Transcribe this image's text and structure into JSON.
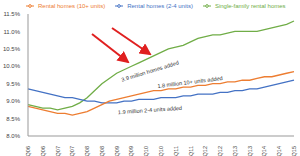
{
  "chart_data": {
    "type": "line",
    "categories": [
      "1Q06",
      null,
      "3Q06",
      null,
      "1Q07",
      null,
      "3Q07",
      null,
      "1Q08",
      null,
      "3Q08",
      null,
      "1Q09",
      null,
      "3Q09",
      null,
      "1Q10",
      null,
      "3Q10",
      null,
      "1Q11",
      null,
      "3Q11",
      null,
      "1Q12",
      null,
      "3Q12",
      null,
      "1Q13",
      null,
      "3Q13",
      null,
      "1Q14",
      null,
      "3Q14",
      null,
      "1Q15"
    ],
    "series": [
      {
        "name": "Single-family rental homes",
        "color": "#70ad47",
        "values": [
          8.9,
          8.85,
          8.8,
          8.8,
          8.75,
          8.8,
          8.85,
          8.95,
          9.1,
          9.3,
          9.5,
          9.65,
          9.8,
          9.9,
          10.0,
          10.1,
          10.2,
          10.3,
          10.4,
          10.5,
          10.55,
          10.6,
          10.7,
          10.8,
          10.85,
          10.9,
          10.9,
          10.95,
          11.0,
          11.0,
          11.0,
          11.0,
          11.05,
          11.1,
          11.15,
          11.2,
          11.3
        ]
      },
      {
        "name": "Rental homes (2-4 units)",
        "color": "#4472c4",
        "values": [
          9.35,
          9.3,
          9.25,
          9.2,
          9.15,
          9.1,
          9.1,
          9.05,
          9.0,
          9.0,
          8.95,
          8.95,
          8.95,
          9.0,
          9.0,
          9.05,
          9.05,
          9.05,
          9.1,
          9.1,
          9.1,
          9.15,
          9.15,
          9.2,
          9.2,
          9.2,
          9.25,
          9.25,
          9.3,
          9.3,
          9.35,
          9.35,
          9.4,
          9.45,
          9.5,
          9.55,
          9.6
        ]
      },
      {
        "name": "Rental homes (10+ units)",
        "color": "#ed7d31",
        "values": [
          8.85,
          8.8,
          8.75,
          8.7,
          8.65,
          8.65,
          8.6,
          8.65,
          8.7,
          8.8,
          8.9,
          9.0,
          9.05,
          9.1,
          9.15,
          9.2,
          9.25,
          9.3,
          9.3,
          9.35,
          9.35,
          9.4,
          9.4,
          9.45,
          9.45,
          9.5,
          9.5,
          9.55,
          9.55,
          9.6,
          9.6,
          9.65,
          9.7,
          9.7,
          9.75,
          9.8,
          9.85
        ]
      }
    ],
    "ylim": [
      8,
      11.5
    ],
    "yticks": [
      {
        "value": 8,
        "label": "8.0%"
      },
      {
        "value": 8.5,
        "label": "8.5%"
      },
      {
        "value": 9,
        "label": "9.0%"
      },
      {
        "value": 9.5,
        "label": "9.5%"
      },
      {
        "value": 10,
        "label": "10.0%"
      },
      {
        "value": 10.5,
        "label": "10.5%"
      },
      {
        "value": 11,
        "label": "11.0%"
      },
      {
        "value": 11.5,
        "label": "11.5%"
      }
    ],
    "grid": false,
    "legend": "top",
    "annotations": [
      "3.9 million homes added",
      "1.8 million 10+ units added",
      "1.9 million 2-4 units added"
    ]
  }
}
